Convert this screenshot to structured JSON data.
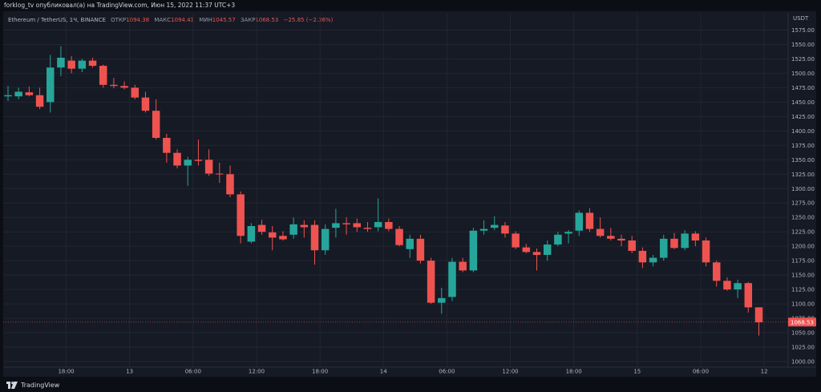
{
  "header": {
    "text": "forklog_tv опубликовал(а) на TradingView.com, Июн 15, 2022 11:37 UTC+3"
  },
  "legend": {
    "symbol": "Ethereum / TetherUS, 1Ч, BINANCE",
    "open_label": "ОТКР",
    "open": "1094.38",
    "high_label": "МАКС",
    "high": "1094.41",
    "low_label": "МИН",
    "low": "1045.57",
    "close_label": "ЗАКР",
    "close": "1068.53",
    "change": "−25.85 (−2.36%)"
  },
  "footer": {
    "brand": "TradingView",
    "logo_icon": "tradingview-logo-icon"
  },
  "colors": {
    "up": "#26a69a",
    "down": "#ef5350",
    "grid": "#232632",
    "background": "#161a25",
    "axis_text": "#b2b5be"
  },
  "chart_data": {
    "type": "candlestick",
    "currency": "USDT",
    "ylim": [
      1000,
      1575
    ],
    "y_ticks": [
      1000,
      1025,
      1050,
      1075,
      1100,
      1125,
      1150,
      1175,
      1200,
      1225,
      1250,
      1275,
      1300,
      1325,
      1350,
      1375,
      1400,
      1425,
      1450,
      1475,
      1500,
      1525,
      1550,
      1575
    ],
    "x_ticks": [
      {
        "label": "18:00",
        "index": 5.5
      },
      {
        "label": "13",
        "index": 11.5
      },
      {
        "label": "06:00",
        "index": 17.5
      },
      {
        "label": "12:00",
        "index": 23.5
      },
      {
        "label": "18:00",
        "index": 29.5
      },
      {
        "label": "14",
        "index": 35.5
      },
      {
        "label": "06:00",
        "index": 41.5
      },
      {
        "label": "12:00",
        "index": 47.5
      },
      {
        "label": "18:00",
        "index": 53.5
      },
      {
        "label": "15",
        "index": 59.5
      },
      {
        "label": "06:00",
        "index": 65.5
      },
      {
        "label": "12",
        "index": 71.5
      }
    ],
    "last_price": 1068.53,
    "grid": true,
    "candles": [
      {
        "o": 1460,
        "h": 1478,
        "l": 1452,
        "c": 1462
      },
      {
        "o": 1460,
        "h": 1475,
        "l": 1455,
        "c": 1468
      },
      {
        "o": 1467,
        "h": 1477,
        "l": 1460,
        "c": 1462
      },
      {
        "o": 1462,
        "h": 1475,
        "l": 1438,
        "c": 1442
      },
      {
        "o": 1450,
        "h": 1532,
        "l": 1432,
        "c": 1510
      },
      {
        "o": 1510,
        "h": 1547,
        "l": 1495,
        "c": 1527
      },
      {
        "o": 1522,
        "h": 1530,
        "l": 1500,
        "c": 1508
      },
      {
        "o": 1508,
        "h": 1525,
        "l": 1502,
        "c": 1522
      },
      {
        "o": 1522,
        "h": 1527,
        "l": 1510,
        "c": 1513
      },
      {
        "o": 1513,
        "h": 1515,
        "l": 1475,
        "c": 1480
      },
      {
        "o": 1480,
        "h": 1492,
        "l": 1474,
        "c": 1478
      },
      {
        "o": 1478,
        "h": 1486,
        "l": 1472,
        "c": 1475
      },
      {
        "o": 1475,
        "h": 1480,
        "l": 1455,
        "c": 1458
      },
      {
        "o": 1458,
        "h": 1468,
        "l": 1432,
        "c": 1435
      },
      {
        "o": 1435,
        "h": 1455,
        "l": 1385,
        "c": 1388
      },
      {
        "o": 1388,
        "h": 1395,
        "l": 1345,
        "c": 1362
      },
      {
        "o": 1362,
        "h": 1368,
        "l": 1335,
        "c": 1340
      },
      {
        "o": 1340,
        "h": 1355,
        "l": 1305,
        "c": 1350
      },
      {
        "o": 1350,
        "h": 1385,
        "l": 1340,
        "c": 1348
      },
      {
        "o": 1350,
        "h": 1368,
        "l": 1322,
        "c": 1326
      },
      {
        "o": 1326,
        "h": 1345,
        "l": 1310,
        "c": 1325
      },
      {
        "o": 1325,
        "h": 1340,
        "l": 1285,
        "c": 1290
      },
      {
        "o": 1290,
        "h": 1295,
        "l": 1205,
        "c": 1218
      },
      {
        "o": 1208,
        "h": 1240,
        "l": 1205,
        "c": 1235
      },
      {
        "o": 1237,
        "h": 1246,
        "l": 1220,
        "c": 1225
      },
      {
        "o": 1224,
        "h": 1235,
        "l": 1193,
        "c": 1215
      },
      {
        "o": 1218,
        "h": 1226,
        "l": 1210,
        "c": 1212
      },
      {
        "o": 1220,
        "h": 1250,
        "l": 1213,
        "c": 1238
      },
      {
        "o": 1237,
        "h": 1245,
        "l": 1215,
        "c": 1233
      },
      {
        "o": 1237,
        "h": 1245,
        "l": 1168,
        "c": 1193
      },
      {
        "o": 1193,
        "h": 1238,
        "l": 1185,
        "c": 1230
      },
      {
        "o": 1232,
        "h": 1265,
        "l": 1215,
        "c": 1240
      },
      {
        "o": 1240,
        "h": 1250,
        "l": 1220,
        "c": 1238
      },
      {
        "o": 1240,
        "h": 1248,
        "l": 1225,
        "c": 1233
      },
      {
        "o": 1232,
        "h": 1242,
        "l": 1225,
        "c": 1230
      },
      {
        "o": 1233,
        "h": 1283,
        "l": 1226,
        "c": 1242
      },
      {
        "o": 1242,
        "h": 1248,
        "l": 1226,
        "c": 1230
      },
      {
        "o": 1230,
        "h": 1235,
        "l": 1200,
        "c": 1202
      },
      {
        "o": 1195,
        "h": 1220,
        "l": 1180,
        "c": 1213
      },
      {
        "o": 1213,
        "h": 1220,
        "l": 1170,
        "c": 1175
      },
      {
        "o": 1175,
        "h": 1180,
        "l": 1100,
        "c": 1102
      },
      {
        "o": 1102,
        "h": 1128,
        "l": 1083,
        "c": 1110
      },
      {
        "o": 1112,
        "h": 1180,
        "l": 1105,
        "c": 1173
      },
      {
        "o": 1173,
        "h": 1180,
        "l": 1155,
        "c": 1158
      },
      {
        "o": 1158,
        "h": 1232,
        "l": 1155,
        "c": 1227
      },
      {
        "o": 1227,
        "h": 1245,
        "l": 1220,
        "c": 1230
      },
      {
        "o": 1232,
        "h": 1252,
        "l": 1228,
        "c": 1237
      },
      {
        "o": 1236,
        "h": 1242,
        "l": 1215,
        "c": 1222
      },
      {
        "o": 1222,
        "h": 1226,
        "l": 1195,
        "c": 1198
      },
      {
        "o": 1198,
        "h": 1204,
        "l": 1188,
        "c": 1190
      },
      {
        "o": 1190,
        "h": 1196,
        "l": 1158,
        "c": 1185
      },
      {
        "o": 1185,
        "h": 1210,
        "l": 1175,
        "c": 1203
      },
      {
        "o": 1203,
        "h": 1225,
        "l": 1200,
        "c": 1220
      },
      {
        "o": 1222,
        "h": 1228,
        "l": 1205,
        "c": 1225
      },
      {
        "o": 1227,
        "h": 1262,
        "l": 1218,
        "c": 1258
      },
      {
        "o": 1258,
        "h": 1266,
        "l": 1225,
        "c": 1230
      },
      {
        "o": 1230,
        "h": 1250,
        "l": 1215,
        "c": 1218
      },
      {
        "o": 1218,
        "h": 1232,
        "l": 1210,
        "c": 1213
      },
      {
        "o": 1213,
        "h": 1220,
        "l": 1200,
        "c": 1210
      },
      {
        "o": 1210,
        "h": 1218,
        "l": 1188,
        "c": 1192
      },
      {
        "o": 1192,
        "h": 1198,
        "l": 1162,
        "c": 1172
      },
      {
        "o": 1172,
        "h": 1185,
        "l": 1165,
        "c": 1180
      },
      {
        "o": 1180,
        "h": 1220,
        "l": 1175,
        "c": 1213
      },
      {
        "o": 1213,
        "h": 1223,
        "l": 1195,
        "c": 1197
      },
      {
        "o": 1197,
        "h": 1228,
        "l": 1193,
        "c": 1222
      },
      {
        "o": 1222,
        "h": 1226,
        "l": 1200,
        "c": 1210
      },
      {
        "o": 1210,
        "h": 1215,
        "l": 1165,
        "c": 1172
      },
      {
        "o": 1172,
        "h": 1175,
        "l": 1130,
        "c": 1140
      },
      {
        "o": 1140,
        "h": 1146,
        "l": 1123,
        "c": 1125
      },
      {
        "o": 1125,
        "h": 1142,
        "l": 1110,
        "c": 1136
      },
      {
        "o": 1136,
        "h": 1138,
        "l": 1085,
        "c": 1094
      },
      {
        "o": 1094,
        "h": 1094,
        "l": 1045,
        "c": 1068
      }
    ]
  }
}
